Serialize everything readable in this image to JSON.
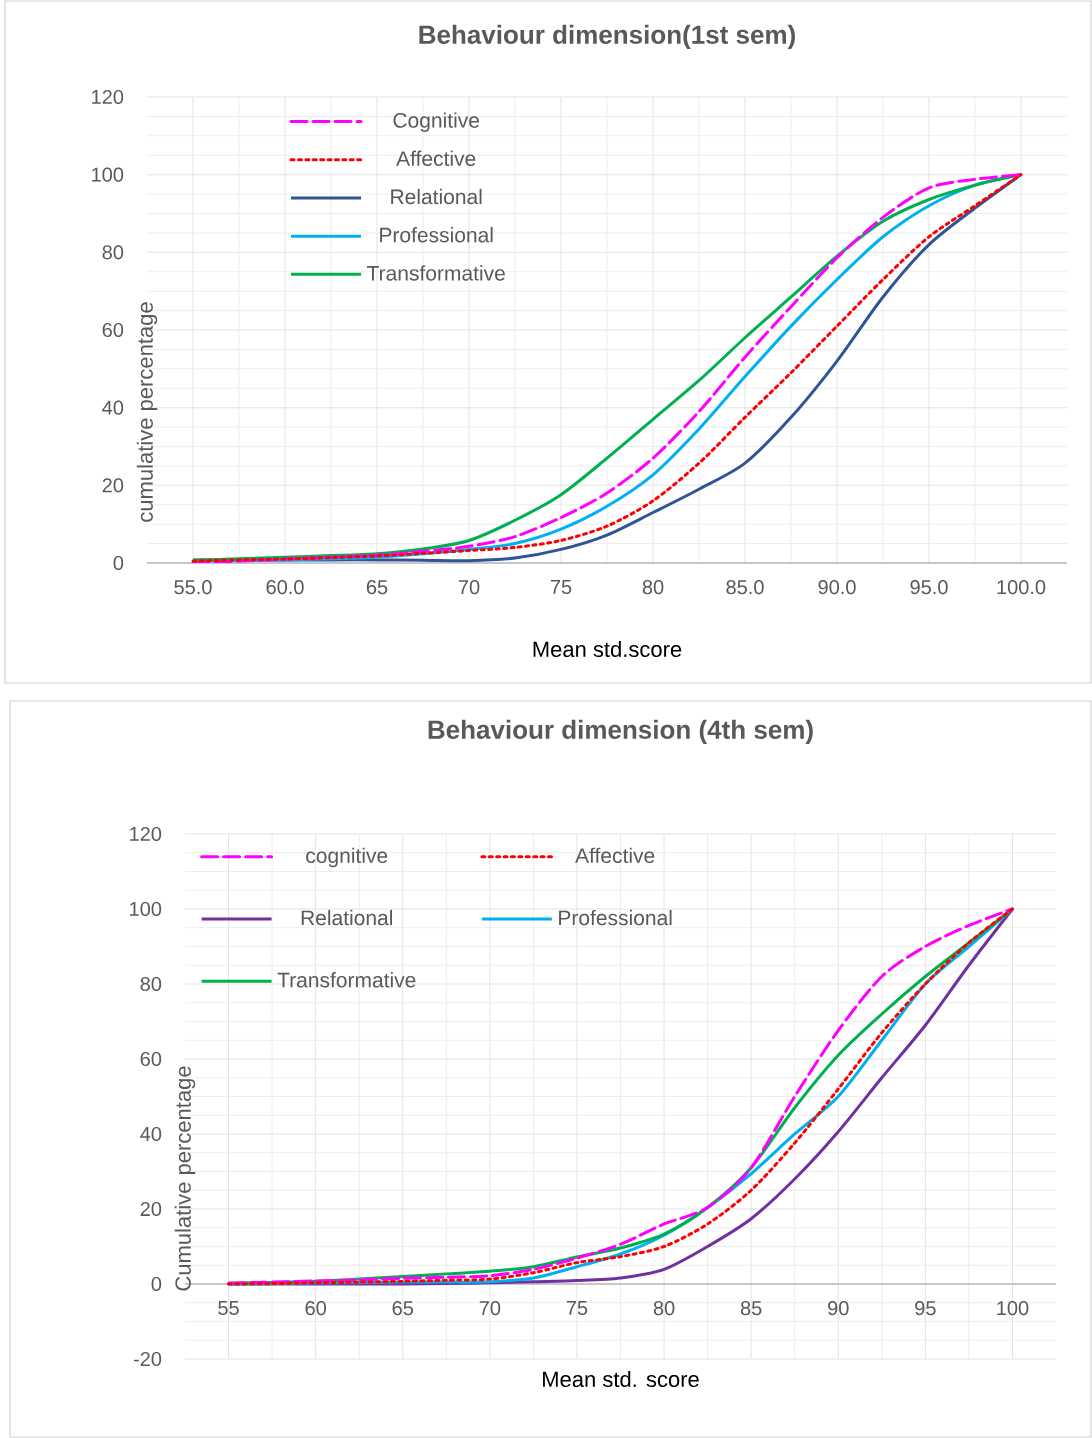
{
  "chart_data": [
    {
      "type": "line",
      "title": "Behaviour dimension(1st sem)",
      "xlabel": "Mean std.score",
      "ylabel": "cumulative percentage",
      "x": [
        55,
        57.5,
        60,
        62.5,
        65,
        67.5,
        70,
        72.5,
        75,
        77.5,
        80,
        82.5,
        85,
        87.5,
        90,
        92.5,
        95,
        97.5,
        100
      ],
      "series": [
        {
          "name": "Cognitive",
          "color": "#ff00ff",
          "line_style": "dashed",
          "values": [
            0,
            0.5,
            1,
            1.5,
            2,
            3,
            4.3,
            6.8,
            11.7,
            18,
            27,
            39,
            53,
            66,
            78.6,
            89,
            96.6,
            98.8,
            100
          ]
        },
        {
          "name": "Affective",
          "color": "#ff0000",
          "line_style": "dotted",
          "values": [
            0.5,
            0.8,
            1,
            1.4,
            1.8,
            2.5,
            3.2,
            4,
            5.8,
            9.5,
            16,
            25.7,
            37.5,
            49,
            61,
            73,
            84,
            92,
            100
          ]
        },
        {
          "name": "Relational",
          "color": "#2f5597",
          "line_style": "solid",
          "values": [
            0.8,
            0.8,
            0.8,
            0.8,
            0.8,
            0.7,
            0.6,
            1.3,
            3.5,
            7.2,
            13,
            19,
            25.7,
            37.5,
            52,
            68.5,
            82,
            91.4,
            100
          ]
        },
        {
          "name": "Professional",
          "color": "#00b0f0",
          "line_style": "solid",
          "values": [
            0.5,
            0.6,
            0.8,
            1.1,
            1.5,
            2.4,
            3.5,
            5,
            8.7,
            14.6,
            22.7,
            34.5,
            48,
            61,
            73,
            84,
            92,
            97.3,
            100
          ]
        },
        {
          "name": "Transformative",
          "color": "#00b050",
          "line_style": "solid",
          "values": [
            0.7,
            1.1,
            1.5,
            1.9,
            2.4,
            3.6,
            5.8,
            11,
            17.6,
            27,
            37,
            47,
            58,
            68.5,
            79,
            88,
            93.6,
            97.3,
            100
          ]
        }
      ],
      "xlim": [
        52.5,
        102.5
      ],
      "ylim": [
        0,
        120
      ],
      "xticks": [
        {
          "value": 55,
          "label": "55.0"
        },
        {
          "value": 60,
          "label": "60.0"
        },
        65,
        70,
        75,
        80,
        {
          "value": 85,
          "label": "85.0"
        },
        {
          "value": 90,
          "label": "90.0"
        },
        {
          "value": 95,
          "label": "95.0"
        },
        {
          "value": 100,
          "label": "100.0"
        }
      ],
      "yticks": [
        0,
        20,
        40,
        60,
        80,
        100,
        120
      ],
      "grid": true,
      "legend": "top left"
    },
    {
      "type": "line",
      "title": "Behaviour dimension (4th sem)",
      "xlabel": "Mean std. score",
      "ylabel": "Cumulative percentage",
      "x": [
        55,
        57.5,
        60,
        62.5,
        65,
        67.5,
        70,
        72.5,
        75,
        77.5,
        80,
        82.5,
        85,
        87.5,
        90,
        92.5,
        95,
        97.5,
        100
      ],
      "series": [
        {
          "name": "cognitive",
          "color": "#ff00ff",
          "line_style": "dashed",
          "values": [
            0.2,
            0.5,
            0.8,
            1.1,
            1.5,
            1.8,
            2.2,
            3.9,
            6.9,
            10.6,
            16,
            20.4,
            31,
            50,
            67.6,
            82,
            90,
            95.6,
            100
          ]
        },
        {
          "name": "Affective",
          "color": "#ff0000",
          "line_style": "dotted",
          "values": [
            0,
            0.1,
            0.3,
            0.5,
            0.7,
            1,
            1.3,
            3,
            5.7,
            7.3,
            10,
            16,
            25,
            37.6,
            52,
            67,
            80,
            91,
            100
          ]
        },
        {
          "name": "Relational",
          "color": "#7030a0",
          "line_style": "solid",
          "values": [
            0,
            0,
            0,
            0,
            0,
            0.1,
            0.3,
            0.6,
            0.9,
            1.6,
            3.9,
            10,
            17.4,
            28,
            40.6,
            55,
            69,
            85,
            100
          ]
        },
        {
          "name": "Professional",
          "color": "#00b0f0",
          "line_style": "solid",
          "values": [
            0,
            0.1,
            0.3,
            0.4,
            0.5,
            0.5,
            0.6,
            1.6,
            4.6,
            8,
            13,
            20.4,
            29.4,
            40,
            50,
            65,
            80,
            90,
            100
          ]
        },
        {
          "name": "Transformative",
          "color": "#00b050",
          "line_style": "solid",
          "values": [
            0.2,
            0.4,
            0.7,
            1.3,
            2,
            2.7,
            3.4,
            4.6,
            7.2,
            9.6,
            13.3,
            20.4,
            31,
            47,
            61,
            72,
            82,
            91,
            100
          ]
        }
      ],
      "xlim": [
        52.5,
        102.5
      ],
      "ylim": [
        -20,
        120
      ],
      "xticks": [
        55,
        60,
        65,
        70,
        75,
        80,
        85,
        90,
        95,
        100
      ],
      "yticks": [
        -20,
        0,
        20,
        40,
        60,
        80,
        100,
        120
      ],
      "grid": true,
      "legend": "top left"
    }
  ]
}
